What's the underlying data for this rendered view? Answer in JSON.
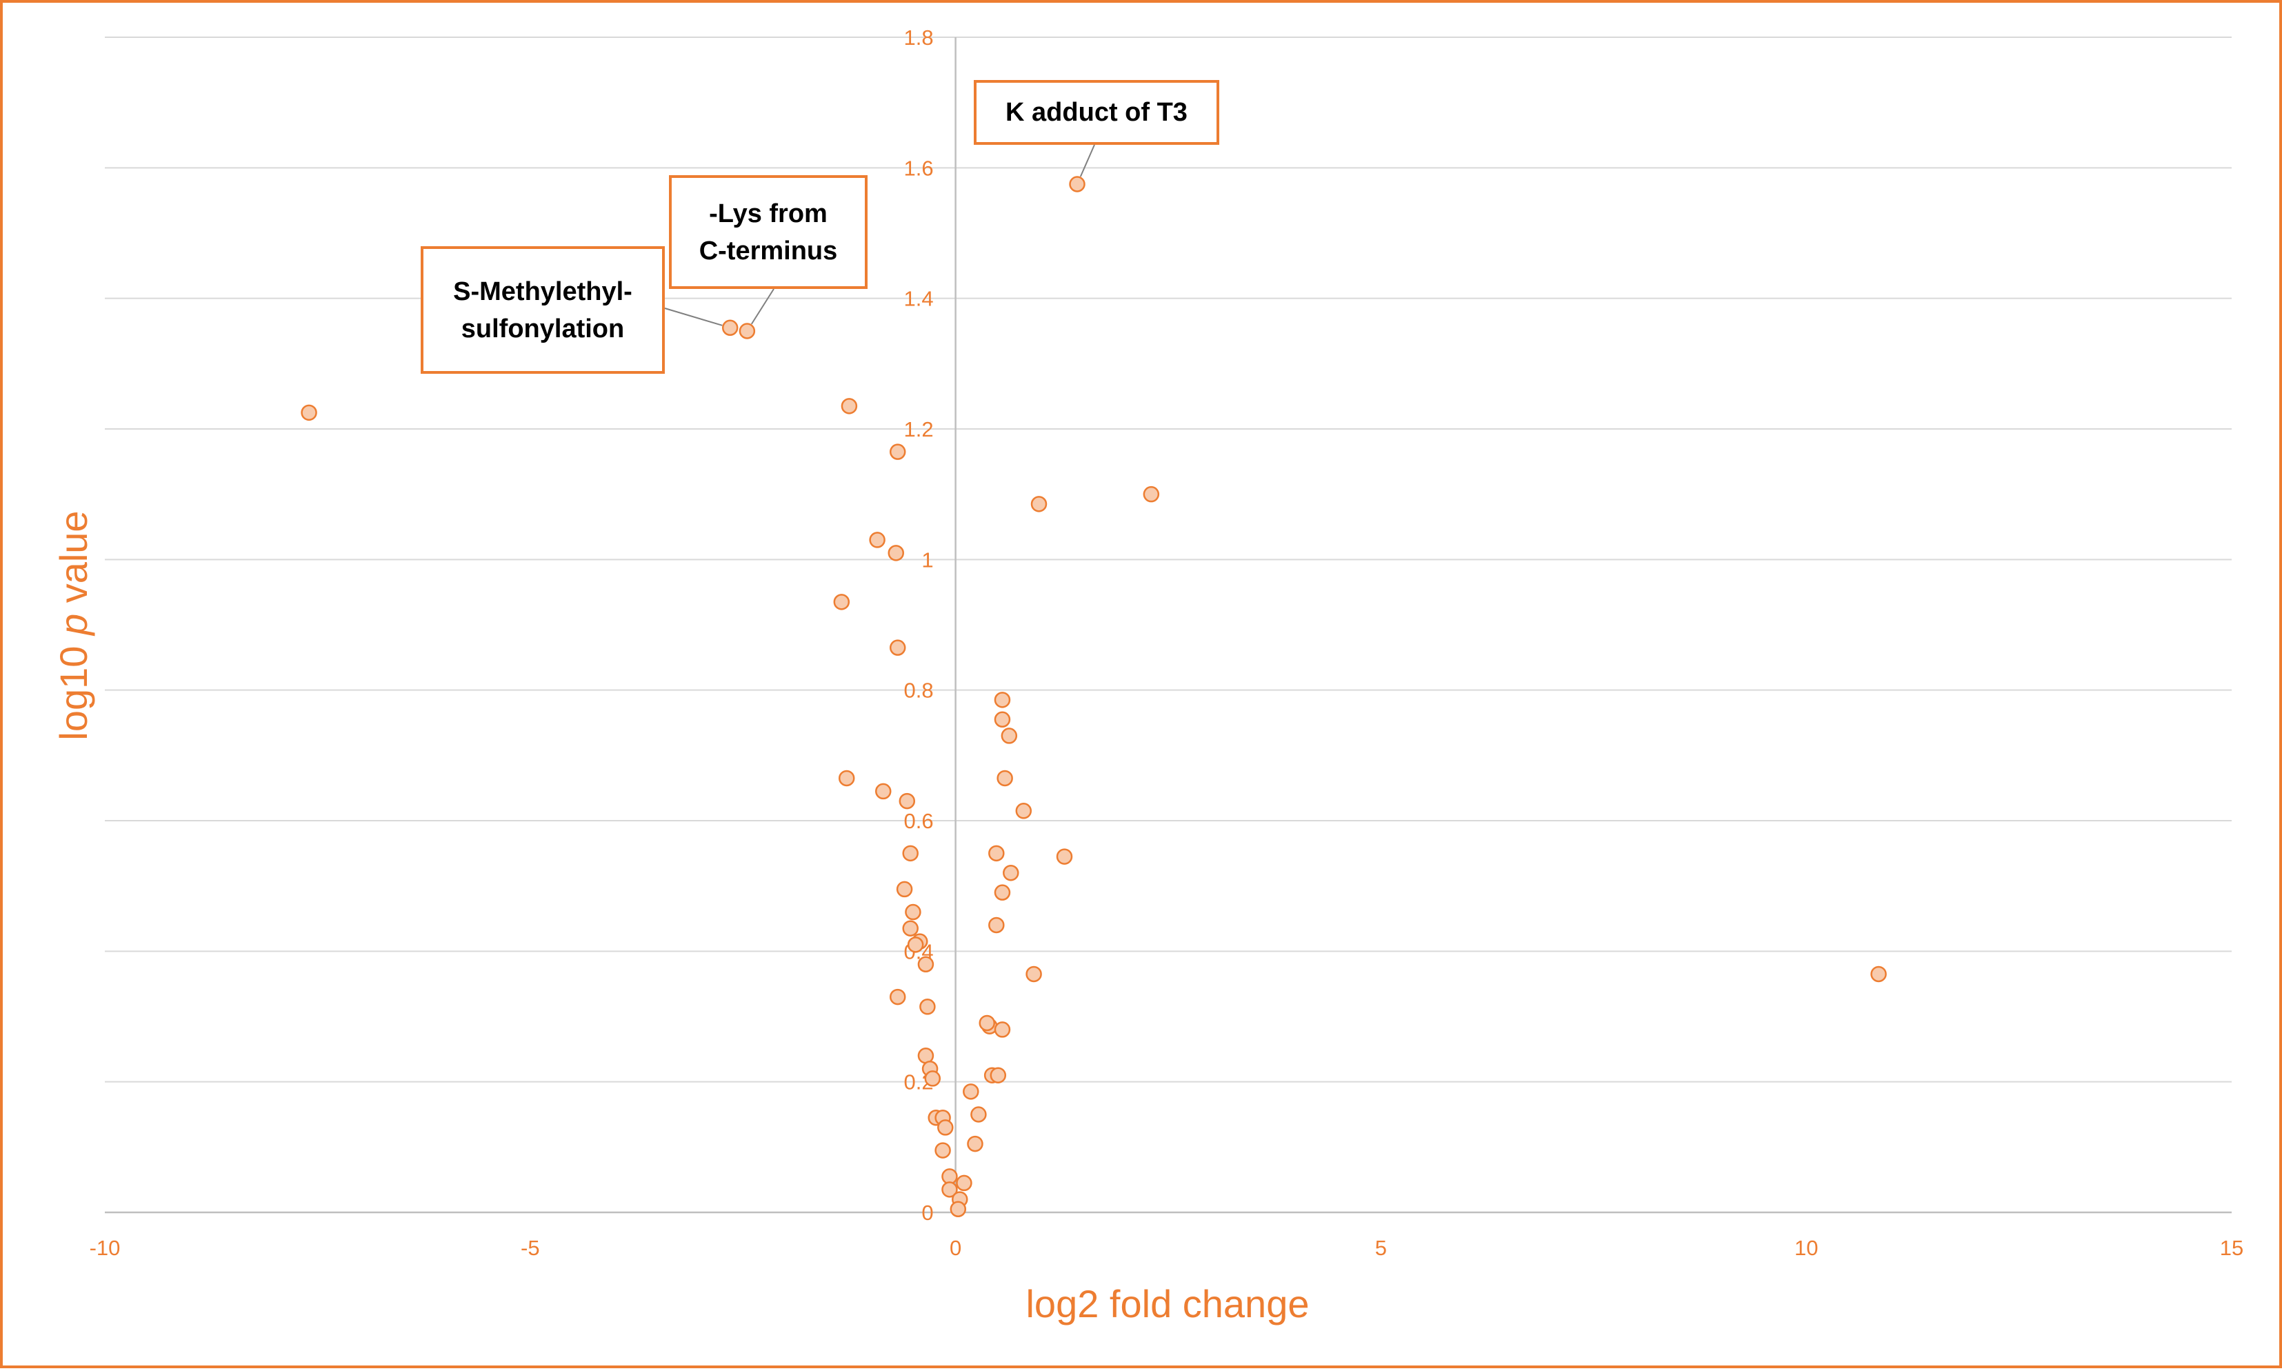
{
  "chart_data": {
    "type": "scatter",
    "xlabel": "log2 fold change",
    "ylabel_parts": [
      "log10 ",
      "p",
      " value"
    ],
    "xlim": [
      -10,
      15
    ],
    "ylim": [
      0,
      1.8
    ],
    "x_ticks": [
      -10,
      -5,
      0,
      5,
      10,
      15
    ],
    "y_ticks": [
      0,
      0.2,
      0.4,
      0.6,
      0.8,
      1,
      1.2,
      1.4,
      1.6,
      1.8
    ],
    "y_tick_labels": [
      "0",
      "0.2",
      "0.4",
      "0.6",
      "0.8",
      "1",
      "1.2",
      "1.4",
      "1.6",
      "1.8"
    ],
    "grid": "horizontal",
    "colors": {
      "accent": "#ED7D31",
      "marker_fill": "#F8CBAD",
      "gridline": "#D9D9D9",
      "axis_line": "#BFBFBF"
    },
    "points": [
      {
        "x": -7.6,
        "y": 1.225
      },
      {
        "x": -2.65,
        "y": 1.355
      },
      {
        "x": -2.45,
        "y": 1.35
      },
      {
        "x": -1.25,
        "y": 1.235
      },
      {
        "x": -0.68,
        "y": 1.165
      },
      {
        "x": -0.92,
        "y": 1.03
      },
      {
        "x": -0.7,
        "y": 1.01
      },
      {
        "x": -1.34,
        "y": 0.935
      },
      {
        "x": -0.68,
        "y": 0.865
      },
      {
        "x": -1.28,
        "y": 0.665
      },
      {
        "x": -0.85,
        "y": 0.645
      },
      {
        "x": -0.57,
        "y": 0.63
      },
      {
        "x": -0.53,
        "y": 0.55
      },
      {
        "x": -0.6,
        "y": 0.495
      },
      {
        "x": -0.5,
        "y": 0.46
      },
      {
        "x": -0.53,
        "y": 0.435
      },
      {
        "x": -0.42,
        "y": 0.415
      },
      {
        "x": -0.47,
        "y": 0.41
      },
      {
        "x": -0.35,
        "y": 0.38
      },
      {
        "x": -0.68,
        "y": 0.33
      },
      {
        "x": -0.33,
        "y": 0.315
      },
      {
        "x": -0.35,
        "y": 0.24
      },
      {
        "x": -0.3,
        "y": 0.22
      },
      {
        "x": -0.27,
        "y": 0.205
      },
      {
        "x": -0.23,
        "y": 0.145
      },
      {
        "x": -0.15,
        "y": 0.145
      },
      {
        "x": -0.12,
        "y": 0.13
      },
      {
        "x": -0.15,
        "y": 0.095
      },
      {
        "x": -0.07,
        "y": 0.055
      },
      {
        "x": -0.07,
        "y": 0.035
      },
      {
        "x": 0.1,
        "y": 0.045
      },
      {
        "x": 0.05,
        "y": 0.02
      },
      {
        "x": 0.03,
        "y": 0.005
      },
      {
        "x": 0.55,
        "y": 0.785
      },
      {
        "x": 0.55,
        "y": 0.755
      },
      {
        "x": 0.63,
        "y": 0.73
      },
      {
        "x": 0.58,
        "y": 0.665
      },
      {
        "x": 0.8,
        "y": 0.615
      },
      {
        "x": 0.48,
        "y": 0.55
      },
      {
        "x": 1.28,
        "y": 0.545
      },
      {
        "x": 0.65,
        "y": 0.52
      },
      {
        "x": 0.55,
        "y": 0.49
      },
      {
        "x": 0.48,
        "y": 0.44
      },
      {
        "x": 0.92,
        "y": 0.365
      },
      {
        "x": 0.4,
        "y": 0.285
      },
      {
        "x": 0.37,
        "y": 0.29
      },
      {
        "x": 0.55,
        "y": 0.28
      },
      {
        "x": 0.43,
        "y": 0.21
      },
      {
        "x": 0.5,
        "y": 0.21
      },
      {
        "x": 0.18,
        "y": 0.185
      },
      {
        "x": 0.27,
        "y": 0.15
      },
      {
        "x": 0.23,
        "y": 0.105
      },
      {
        "x": 1.43,
        "y": 1.575
      },
      {
        "x": 0.98,
        "y": 1.085
      },
      {
        "x": 2.3,
        "y": 1.1
      },
      {
        "x": 10.85,
        "y": 0.365
      }
    ],
    "annotations": [
      {
        "id": "k-adduct",
        "lines": [
          "K adduct of T3"
        ],
        "target": {
          "x": 1.43,
          "y": 1.575
        }
      },
      {
        "id": "lys-c-terminus",
        "lines": [
          "-Lys from",
          "C-terminus"
        ],
        "target": {
          "x": -2.45,
          "y": 1.35
        }
      },
      {
        "id": "s-methylethyl",
        "lines": [
          "S-Methylethyl-",
          "sulfonylation"
        ],
        "target": {
          "x": -2.65,
          "y": 1.355
        }
      }
    ]
  }
}
